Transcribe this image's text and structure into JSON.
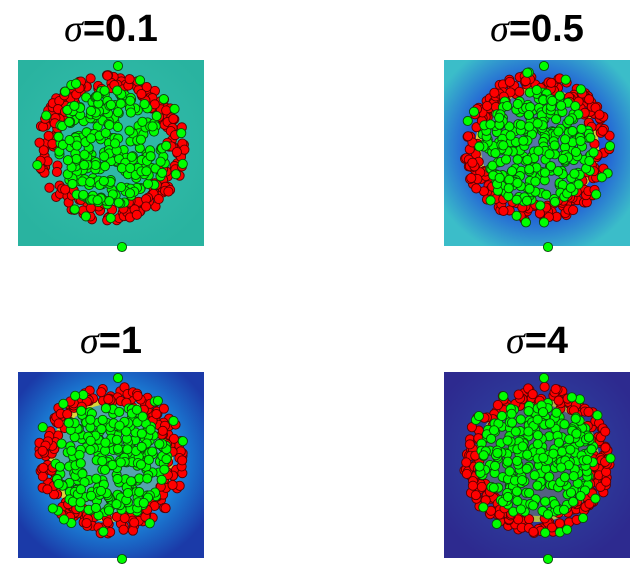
{
  "chart_data": [
    {
      "type": "scatter",
      "title_symbol": "σ",
      "title_value": "=0.1",
      "sigma": 0.1,
      "background_colors": {
        "outer": "#29b3a0",
        "inner": "#2fb8a6",
        "gap": "#2fb8a6"
      },
      "series": [
        {
          "name": "",
          "color": "#ff0000",
          "shape": "ring"
        },
        {
          "name": "",
          "color": "#00ff00",
          "shape": "disk"
        }
      ]
    },
    {
      "type": "scatter",
      "title_symbol": "σ",
      "title_value": "=0.5",
      "sigma": 0.5,
      "background_colors": {
        "outer": "#3bbdc9",
        "inner": "#1e4fd8",
        "gap": "#ffe21a"
      },
      "series": [
        {
          "name": "",
          "color": "#ff0000",
          "shape": "ring"
        },
        {
          "name": "",
          "color": "#00ff00",
          "shape": "disk"
        }
      ]
    },
    {
      "type": "scatter",
      "title_symbol": "σ",
      "title_value": "=1",
      "sigma": 1,
      "background_colors": {
        "outer": "#1b3aa8",
        "inner": "#1a8fe0",
        "gap": "#ffe21a"
      },
      "series": [
        {
          "name": "",
          "color": "#ff0000",
          "shape": "ring"
        },
        {
          "name": "",
          "color": "#00ff00",
          "shape": "disk"
        }
      ]
    },
    {
      "type": "scatter",
      "title_symbol": "σ",
      "title_value": "=4",
      "sigma": 4,
      "background_colors": {
        "outer": "#2d2a8f",
        "inner": "#2d3a9a",
        "gap": "#c9d43a"
      },
      "series": [
        {
          "name": "",
          "color": "#ff0000",
          "shape": "ring"
        },
        {
          "name": "",
          "color": "#00ff00",
          "shape": "disk"
        }
      ]
    }
  ]
}
